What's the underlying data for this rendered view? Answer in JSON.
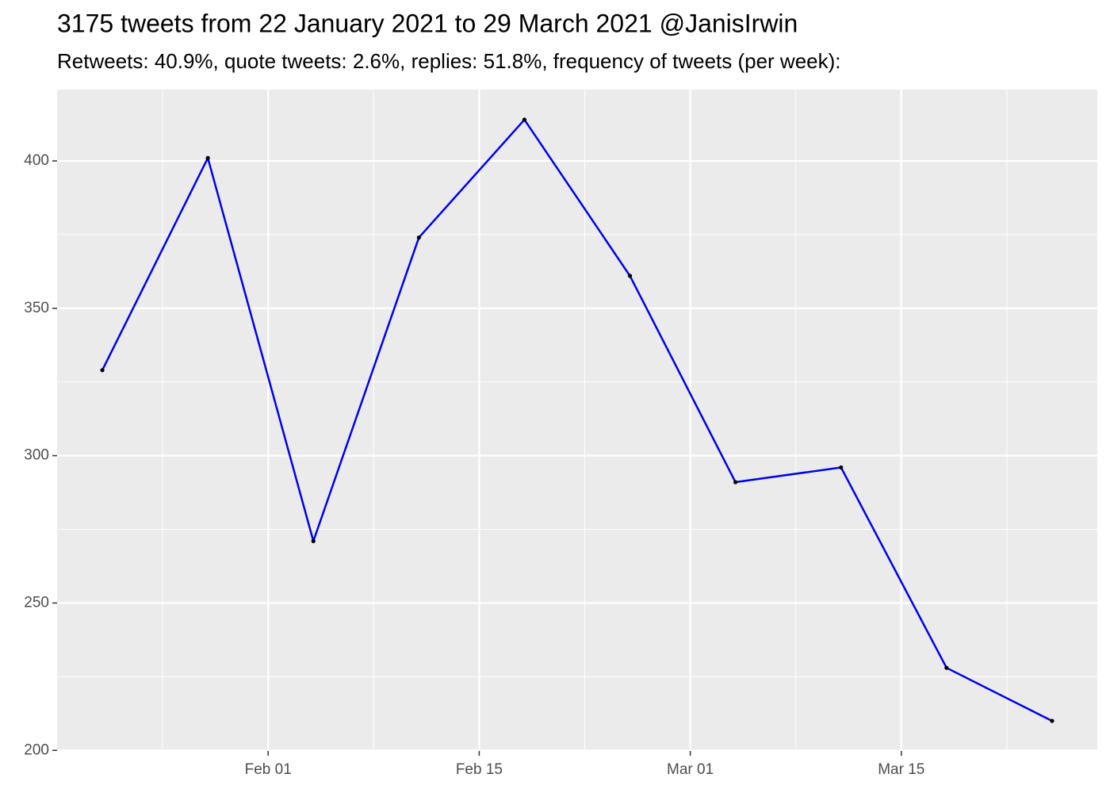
{
  "chart_data": {
    "type": "line",
    "title": "3175 tweets from 22 January 2021 to 29 March 2021 @JanisIrwin",
    "subtitle": "Retweets: 40.9%, quote tweets: 2.6%, replies: 51.8%, frequency of tweets (per week):",
    "x": [
      "Jan 21",
      "Jan 28",
      "Feb 04",
      "Feb 11",
      "Feb 18",
      "Feb 25",
      "Mar 04",
      "Mar 11",
      "Mar 18",
      "Mar 25"
    ],
    "values": [
      329,
      401,
      271,
      374,
      414,
      361,
      291,
      296,
      228,
      210
    ],
    "color": "#0000ee",
    "point_color": "#000000",
    "xlim": [
      "Jan 18",
      "Mar 28"
    ],
    "xticks": [
      "Feb 01",
      "Feb 15",
      "Mar 01",
      "Mar 15"
    ],
    "ylim": [
      199.8,
      424.2
    ],
    "yticks": [
      200,
      250,
      300,
      350,
      400
    ],
    "grid": true
  }
}
